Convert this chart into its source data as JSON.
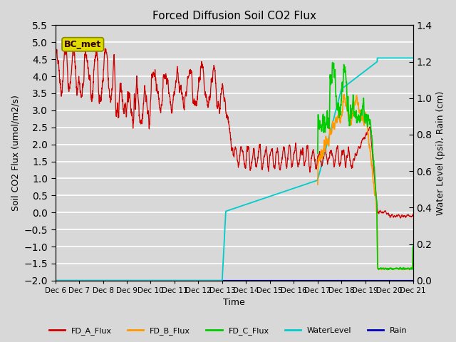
{
  "title": "Forced Diffusion Soil CO2 Flux",
  "ylabel_left": "Soil CO2 Flux (umol/m2/s)",
  "ylabel_right": "Water Level (psi), Rain (cm)",
  "xlabel": "Time",
  "ylim_left": [
    -2.0,
    5.5
  ],
  "ylim_right": [
    0.0,
    1.4
  ],
  "yticks_left": [
    -2.0,
    -1.5,
    -1.0,
    -0.5,
    0.0,
    0.5,
    1.0,
    1.5,
    2.0,
    2.5,
    3.0,
    3.5,
    4.0,
    4.5,
    5.0,
    5.5
  ],
  "yticks_right": [
    0.0,
    0.2,
    0.4,
    0.6,
    0.8,
    1.0,
    1.2,
    1.4
  ],
  "colors": {
    "FD_A_Flux": "#cc0000",
    "FD_B_Flux": "#ff9900",
    "FD_C_Flux": "#00cc00",
    "WaterLevel": "#00cccc",
    "Rain": "#0000bb"
  },
  "annotation_text": "BC_met",
  "annotation_facecolor": "#dddd00",
  "annotation_edgecolor": "#888800",
  "background_color": "#d8d8d8",
  "grid_color": "#ffffff",
  "xtick_labels": [
    "Dec 6",
    "Dec 7",
    "Dec 8",
    "Dec 9",
    "Dec 10",
    "Dec 11",
    "Dec 12",
    "Dec 13",
    "Dec 14",
    "Dec 15",
    "Dec 16",
    "Dec 17",
    "Dec 18",
    "Dec 19",
    "Dec 20",
    "Dec 21"
  ]
}
